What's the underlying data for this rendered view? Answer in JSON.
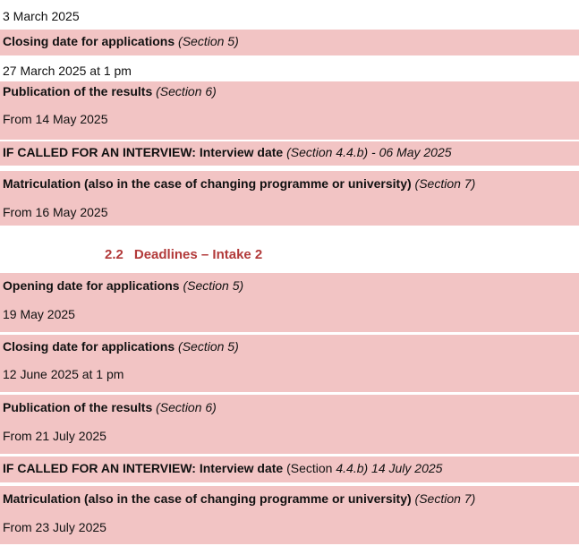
{
  "intake1": {
    "opening_date": "3 March 2025",
    "closing": {
      "label": "Closing date for applications",
      "ref": "(Section 5)",
      "date": "27 March 2025 at 1 pm"
    },
    "publication": {
      "label": "Publication of the results",
      "ref": "(Section 6)",
      "date": "From 14 May 2025"
    },
    "interview": {
      "label": "IF CALLED FOR AN INTERVIEW: Interview date",
      "ref": "(Section 4.4.b) - 06 May 2025"
    },
    "matriculation": {
      "label": "Matriculation (also in the case of changing programme or university)",
      "ref": "(Section 7)",
      "date": "From 16 May 2025"
    }
  },
  "intake2": {
    "section_number": "2.2",
    "section_title": "Deadlines – Intake 2",
    "opening": {
      "label": "Opening date for applications",
      "ref": "(Section 5)",
      "date": "19 May 2025"
    },
    "closing": {
      "label": "Closing date for applications",
      "ref": "(Section 5)",
      "date": "12 June 2025 at 1 pm"
    },
    "publication": {
      "label": "Publication of the results",
      "ref": "(Section 6)",
      "date": "From 21 July 2025"
    },
    "interview": {
      "label": "IF CALLED FOR AN INTERVIEW: Interview date",
      "ref_plain": "(Section",
      "ref_italic": "4.4.b) 14 July 2025"
    },
    "matriculation": {
      "label": "Matriculation (also in the case of changing programme or university)",
      "ref": "(Section 7)",
      "date": "From 23 July 2025"
    }
  }
}
